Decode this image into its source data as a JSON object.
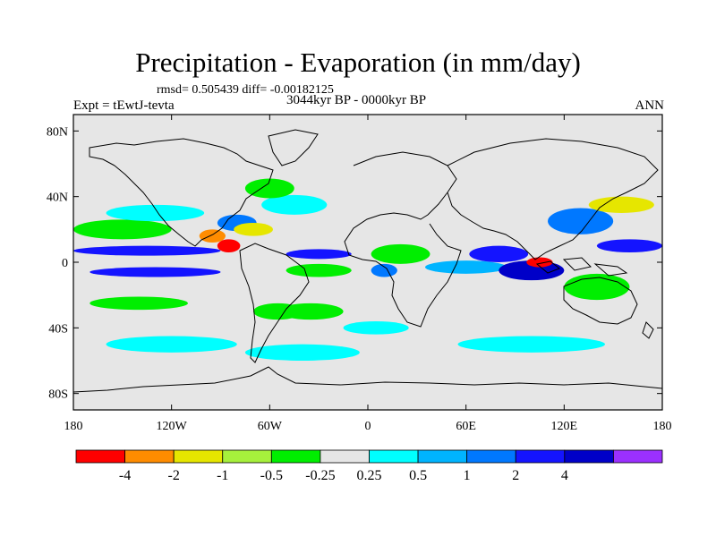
{
  "title": "Precipitation - Evaporation (in mm/day)",
  "stats": "rmsd= 0.505439 diff= -0.00182125",
  "experiment": "Expt = tEwtJ-tevta",
  "period": "3044kyr BP - 0000kyr BP",
  "season": "ANN",
  "colors": {
    "background": "#e6e6e6",
    "coast": "#000000",
    "levels": [
      "#ff0000",
      "#ff8c00",
      "#e6e600",
      "#a6f03c",
      "#00ee00",
      "#e6e6e6",
      "#00ffff",
      "#00b4ff",
      "#0078ff",
      "#1414ff",
      "#0000c8",
      "#9b30ff"
    ]
  },
  "chart_data": {
    "type": "heatmap",
    "title": "Precipitation - Evaporation (in mm/day)",
    "x_ticks": [
      {
        "value": -180,
        "label": "180"
      },
      {
        "value": -120,
        "label": "120W"
      },
      {
        "value": -60,
        "label": "60W"
      },
      {
        "value": 0,
        "label": "0"
      },
      {
        "value": 60,
        "label": "60E"
      },
      {
        "value": 120,
        "label": "120E"
      },
      {
        "value": 180,
        "label": "180"
      }
    ],
    "y_ticks": [
      {
        "value": 80,
        "label": "80N"
      },
      {
        "value": 40,
        "label": "40N"
      },
      {
        "value": 0,
        "label": "0"
      },
      {
        "value": -40,
        "label": "40S"
      },
      {
        "value": -80,
        "label": "80S"
      }
    ],
    "xlim": [
      -180,
      180
    ],
    "ylim": [
      -90,
      90
    ],
    "colorbar_labels": [
      "-4",
      "-2",
      "-1",
      "-0.5",
      "-0.25",
      "0.25",
      "0.5",
      "1",
      "2",
      "4"
    ],
    "features": [
      {
        "lon": -135,
        "lat": 7,
        "rlon": 45,
        "rlat": 3,
        "level": 9
      },
      {
        "lon": -130,
        "lat": -6,
        "rlon": 40,
        "rlat": 3,
        "level": 9
      },
      {
        "lon": -150,
        "lat": 20,
        "rlon": 30,
        "rlat": 6,
        "level": 4
      },
      {
        "lon": -130,
        "lat": 30,
        "rlon": 30,
        "rlat": 5,
        "level": 6
      },
      {
        "lon": -95,
        "lat": 16,
        "rlon": 8,
        "rlat": 4,
        "level": 1
      },
      {
        "lon": -85,
        "lat": 10,
        "rlon": 7,
        "rlat": 4,
        "level": 0
      },
      {
        "lon": -80,
        "lat": 24,
        "rlon": 12,
        "rlat": 5,
        "level": 8
      },
      {
        "lon": -70,
        "lat": 20,
        "rlon": 12,
        "rlat": 4,
        "level": 2
      },
      {
        "lon": -45,
        "lat": 35,
        "rlon": 20,
        "rlat": 6,
        "level": 6
      },
      {
        "lon": -60,
        "lat": 45,
        "rlon": 15,
        "rlat": 6,
        "level": 4
      },
      {
        "lon": -30,
        "lat": 5,
        "rlon": 20,
        "rlat": 3,
        "level": 9
      },
      {
        "lon": -30,
        "lat": -5,
        "rlon": 20,
        "rlat": 4,
        "level": 4
      },
      {
        "lon": -55,
        "lat": -30,
        "rlon": 15,
        "rlat": 5,
        "level": 4
      },
      {
        "lon": -35,
        "lat": -30,
        "rlon": 20,
        "rlat": 5,
        "level": 4
      },
      {
        "lon": -40,
        "lat": -55,
        "rlon": 35,
        "rlat": 5,
        "level": 6
      },
      {
        "lon": 20,
        "lat": 5,
        "rlon": 18,
        "rlat": 6,
        "level": 4
      },
      {
        "lon": 10,
        "lat": -5,
        "rlon": 8,
        "rlat": 4,
        "level": 8
      },
      {
        "lon": 5,
        "lat": -40,
        "rlon": 20,
        "rlat": 4,
        "level": 6
      },
      {
        "lon": 60,
        "lat": -3,
        "rlon": 25,
        "rlat": 4,
        "level": 7
      },
      {
        "lon": 80,
        "lat": 5,
        "rlon": 18,
        "rlat": 5,
        "level": 9
      },
      {
        "lon": 100,
        "lat": -5,
        "rlon": 20,
        "rlat": 6,
        "level": 10
      },
      {
        "lon": 105,
        "lat": 0,
        "rlon": 8,
        "rlat": 3,
        "level": 0
      },
      {
        "lon": 130,
        "lat": 25,
        "rlon": 20,
        "rlat": 8,
        "level": 8
      },
      {
        "lon": 155,
        "lat": 35,
        "rlon": 20,
        "rlat": 5,
        "level": 2
      },
      {
        "lon": 160,
        "lat": 10,
        "rlon": 20,
        "rlat": 4,
        "level": 9
      },
      {
        "lon": 140,
        "lat": -15,
        "rlon": 20,
        "rlat": 8,
        "level": 4
      },
      {
        "lon": 100,
        "lat": -50,
        "rlon": 45,
        "rlat": 5,
        "level": 6
      },
      {
        "lon": -120,
        "lat": -50,
        "rlon": 40,
        "rlat": 5,
        "level": 6
      },
      {
        "lon": -140,
        "lat": -25,
        "rlon": 30,
        "rlat": 4,
        "level": 4
      }
    ]
  }
}
